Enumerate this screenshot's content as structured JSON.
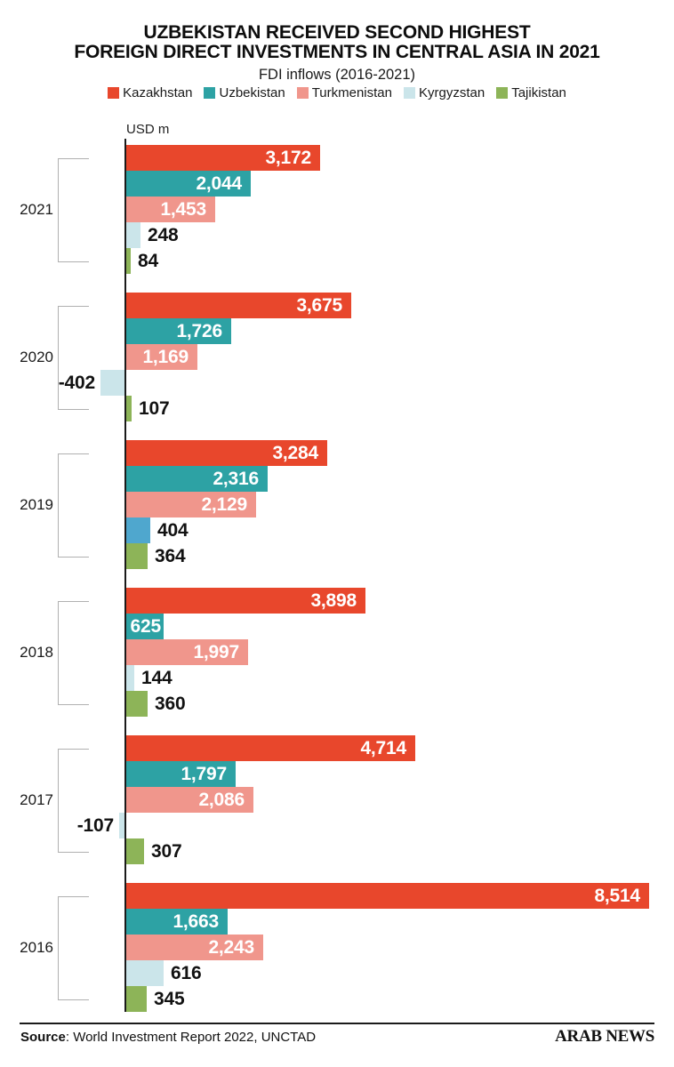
{
  "title": {
    "line1": "UZBEKISTAN RECEIVED SECOND HIGHEST",
    "line2": "FOREIGN DIRECT INVESTMENTS IN CENTRAL ASIA IN 2021"
  },
  "subtitle": "FDI inflows (2016-2021)",
  "unit_label": "USD m",
  "legend": [
    {
      "name": "Kazakhstan",
      "color": "#E8472C"
    },
    {
      "name": "Uzbekistan",
      "color": "#2DA2A4"
    },
    {
      "name": "Turkmenistan",
      "color": "#F0968C"
    },
    {
      "name": "Kyrgyzstan",
      "color": "#CBE5EA"
    },
    {
      "name": "Tajikistan",
      "color": "#8DB458"
    }
  ],
  "footer": {
    "source_label": "Source",
    "source_rest": ": World Investment Report 2022, UNCTAD",
    "brand": "ARAB NEWS"
  },
  "chart_data": {
    "type": "bar",
    "orientation": "horizontal",
    "title": "UZBEKISTAN RECEIVED SECOND HIGHEST FOREIGN DIRECT INVESTMENTS IN CENTRAL ASIA IN 2021",
    "subtitle": "FDI inflows (2016-2021)",
    "unit": "USD m",
    "value_range": [
      -402,
      8514
    ],
    "legend_position": "top",
    "series_names": [
      "Kazakhstan",
      "Uzbekistan",
      "Turkmenistan",
      "Kyrgyzstan",
      "Tajikistan"
    ],
    "groups": [
      {
        "year": "2021",
        "bars": [
          {
            "series": "Kazakhstan",
            "value": 3172,
            "label": "3,172",
            "label_inside": true
          },
          {
            "series": "Uzbekistan",
            "value": 2044,
            "label": "2,044",
            "label_inside": true
          },
          {
            "series": "Turkmenistan",
            "value": 1453,
            "label": "1,453",
            "label_inside": true
          },
          {
            "series": "Kyrgyzstan",
            "value": 248,
            "label": "248",
            "label_inside": false
          },
          {
            "series": "Tajikistan",
            "value": 84,
            "label": "84",
            "label_inside": false
          }
        ]
      },
      {
        "year": "2020",
        "bars": [
          {
            "series": "Kazakhstan",
            "value": 3675,
            "label": "3,675",
            "label_inside": true
          },
          {
            "series": "Uzbekistan",
            "value": 1726,
            "label": "1,726",
            "label_inside": true
          },
          {
            "series": "Turkmenistan",
            "value": 1169,
            "label": "1,169",
            "label_inside": true
          },
          {
            "series": "Kyrgyzstan",
            "value": -402,
            "label": "-402",
            "label_inside": false
          },
          {
            "series": "Tajikistan",
            "value": 107,
            "label": "107",
            "label_inside": false
          }
        ]
      },
      {
        "year": "2019",
        "bars": [
          {
            "series": "Kazakhstan",
            "value": 3284,
            "label": "3,284",
            "label_inside": true
          },
          {
            "series": "Uzbekistan",
            "value": 2316,
            "label": "2,316",
            "label_inside": true
          },
          {
            "series": "Turkmenistan",
            "value": 2129,
            "label": "2,129",
            "label_inside": true
          },
          {
            "series": "Kyrgyzstan",
            "value": 404,
            "label": "404",
            "label_inside": false,
            "color": "#4FA7CE"
          },
          {
            "series": "Tajikistan",
            "value": 364,
            "label": "364",
            "label_inside": false
          }
        ]
      },
      {
        "year": "2018",
        "bars": [
          {
            "series": "Kazakhstan",
            "value": 3898,
            "label": "3,898",
            "label_inside": true
          },
          {
            "series": "Uzbekistan",
            "value": 625,
            "label": "625",
            "label_inside": true
          },
          {
            "series": "Turkmenistan",
            "value": 1997,
            "label": "1,997",
            "label_inside": true
          },
          {
            "series": "Kyrgyzstan",
            "value": 144,
            "label": "144",
            "label_inside": false
          },
          {
            "series": "Tajikistan",
            "value": 360,
            "label": "360",
            "label_inside": false
          }
        ]
      },
      {
        "year": "2017",
        "bars": [
          {
            "series": "Kazakhstan",
            "value": 4714,
            "label": "4,714",
            "label_inside": true
          },
          {
            "series": "Uzbekistan",
            "value": 1797,
            "label": "1,797",
            "label_inside": true
          },
          {
            "series": "Turkmenistan",
            "value": 2086,
            "label": "2,086",
            "label_inside": true
          },
          {
            "series": "Kyrgyzstan",
            "value": -107,
            "label": "-107",
            "label_inside": false
          },
          {
            "series": "Tajikistan",
            "value": 307,
            "label": "307",
            "label_inside": false
          }
        ]
      },
      {
        "year": "2016",
        "bars": [
          {
            "series": "Kazakhstan",
            "value": 8514,
            "label": "8,514",
            "label_inside": true
          },
          {
            "series": "Uzbekistan",
            "value": 1663,
            "label": "1,663",
            "label_inside": true
          },
          {
            "series": "Turkmenistan",
            "value": 2243,
            "label": "2,243",
            "label_inside": true
          },
          {
            "series": "Kyrgyzstan",
            "value": 616,
            "label": "616",
            "label_inside": false
          },
          {
            "series": "Tajikistan",
            "value": 345,
            "label": "345",
            "label_inside": false
          }
        ]
      }
    ]
  }
}
